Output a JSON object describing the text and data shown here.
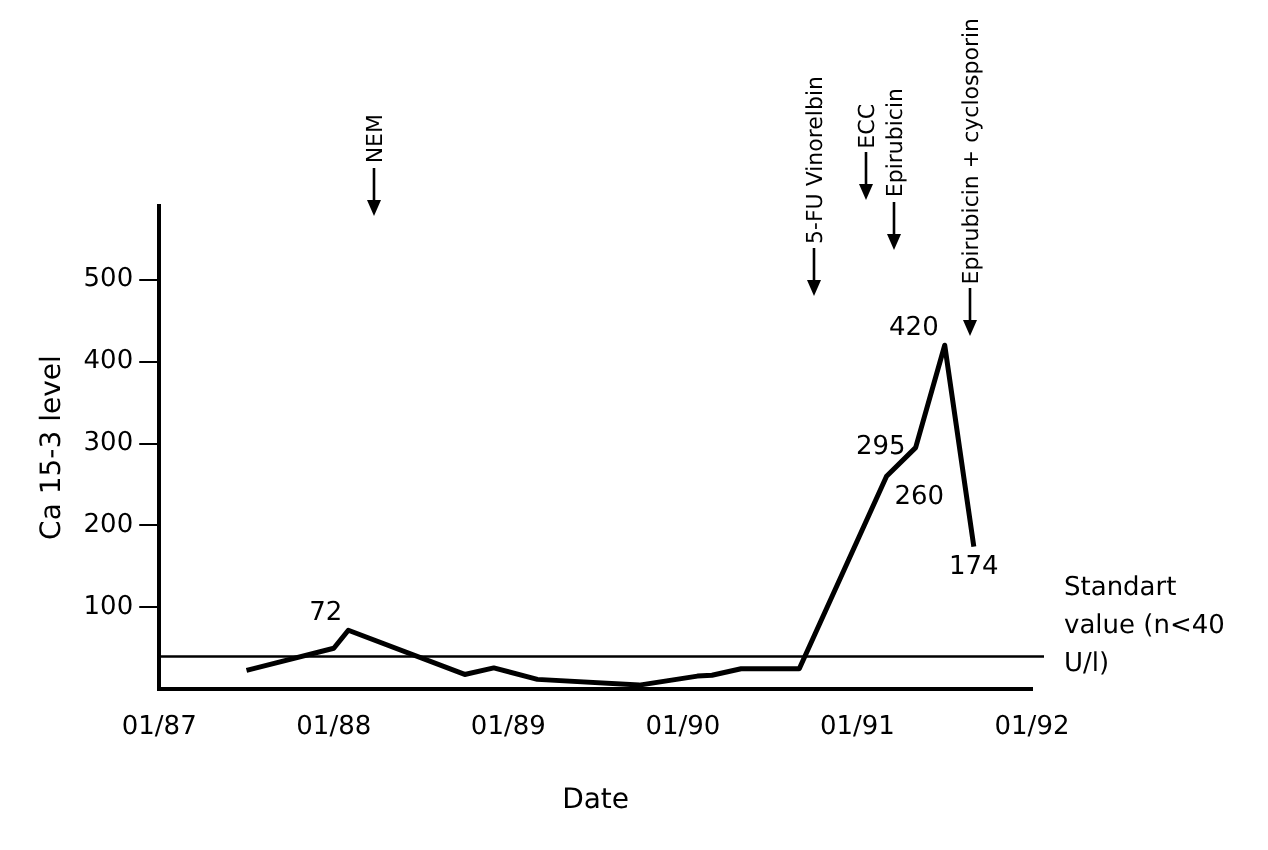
{
  "chart_data": {
    "type": "line",
    "xlabel": "Date",
    "ylabel": "Ca 15-3 level",
    "x": [
      "1987-07",
      "1988-01",
      "1988-02",
      "1988-10",
      "1988-12",
      "1989-03",
      "1989-10",
      "1990-02",
      "1990-03",
      "1990-05",
      "1990-09",
      "1991-03",
      "1991-05",
      "1991-07",
      "1991-09"
    ],
    "series": [
      {
        "color": "#000000",
        "values": [
          23,
          50,
          72,
          18,
          26,
          12,
          5,
          16,
          17,
          25,
          25,
          260,
          295,
          420,
          174
        ],
        "value_labels": [
          null,
          null,
          "72",
          null,
          null,
          null,
          null,
          null,
          null,
          null,
          null,
          "260",
          "295",
          "420",
          "174"
        ]
      }
    ],
    "xlim": [
      "1987-01",
      "1992-01"
    ],
    "xticks": [
      {
        "value": "1987-01",
        "label": "01/87"
      },
      {
        "value": "1988-01",
        "label": "01/88"
      },
      {
        "value": "1989-01",
        "label": "01/89"
      },
      {
        "value": "1990-01",
        "label": "01/90"
      },
      {
        "value": "1991-01",
        "label": "01/91"
      },
      {
        "value": "1992-01",
        "label": "01/92"
      }
    ],
    "ylim": [
      0,
      590
    ],
    "yticks": [
      100,
      200,
      300,
      400,
      500
    ],
    "ref_lines": [
      {
        "axis": "y",
        "value": 40,
        "label": "Standart value (n<40 U/l)",
        "color": "#000000"
      }
    ],
    "annotations": [
      "NEM",
      "5-FU Vinorelbin",
      "ECC",
      "Epirubicin",
      "Epirubicin + cyclosporin"
    ],
    "grid": false,
    "legend": false,
    "marker": "none",
    "line_style": "solid"
  }
}
